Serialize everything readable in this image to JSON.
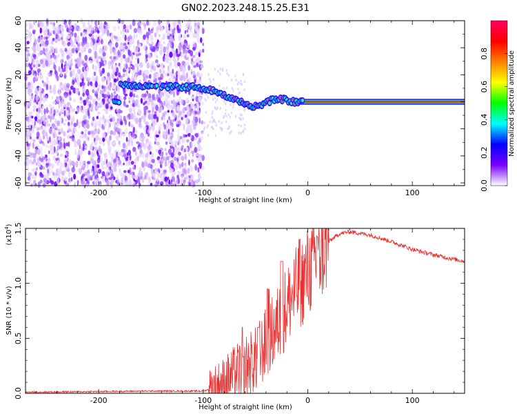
{
  "figure": {
    "title": "GN02.2023.248.15.25.E31"
  },
  "chart_data": [
    {
      "type": "heatmap",
      "xlabel": "Height of straight line (km)",
      "ylabel": "Frequency (Hz)",
      "xlim": [
        -270,
        150
      ],
      "ylim": [
        -62,
        60
      ],
      "x_ticks": [
        -200,
        -100,
        0,
        100
      ],
      "y_ticks": [
        60,
        40,
        20,
        0,
        -20,
        -40,
        -60
      ],
      "colorbar": {
        "label": "Normalized spectral amplitude",
        "range": [
          0,
          1
        ],
        "ticks": [
          "0.0",
          "0.2",
          "0.4",
          "0.6",
          "0.8"
        ],
        "colors": [
          "#ffffff",
          "#7a00ff",
          "#0000ff",
          "#00ffff",
          "#00ff00",
          "#ffff00",
          "#ff8000",
          "#ff0000",
          "#ff0060"
        ]
      },
      "signal_track": [
        {
          "x": -180,
          "f": 13
        },
        {
          "x": -160,
          "f": 12
        },
        {
          "x": -140,
          "f": 11
        },
        {
          "x": -120,
          "f": 11
        },
        {
          "x": -105,
          "f": 11
        },
        {
          "x": -95,
          "f": 9
        },
        {
          "x": -85,
          "f": 7
        },
        {
          "x": -75,
          "f": 3
        },
        {
          "x": -65,
          "f": 0
        },
        {
          "x": -55,
          "f": -3
        },
        {
          "x": -45,
          "f": -3
        },
        {
          "x": -35,
          "f": 1
        },
        {
          "x": -25,
          "f": 2
        },
        {
          "x": -15,
          "f": 0
        },
        {
          "x": 0,
          "f": 0
        },
        {
          "x": 50,
          "f": 0
        },
        {
          "x": 150,
          "f": 0
        }
      ]
    },
    {
      "type": "line",
      "xlabel": "Height of straight line (km)",
      "ylabel": "SNR (10 * v/v)",
      "scale_label": "(x10",
      "scale_exponent": "4",
      "xlim": [
        -270,
        150
      ],
      "ylim": [
        0,
        1.5
      ],
      "x_ticks": [
        -200,
        -100,
        0,
        100
      ],
      "y_ticks": [
        "0.0",
        "0.5",
        "1.0",
        "1.5"
      ],
      "color": "#e83030",
      "envelope": [
        {
          "x": -270,
          "y": 0.01
        },
        {
          "x": -150,
          "y": 0.02
        },
        {
          "x": -100,
          "y": 0.02
        },
        {
          "x": -90,
          "y": 0.05
        },
        {
          "x": -80,
          "y": 0.1
        },
        {
          "x": -70,
          "y": 0.18
        },
        {
          "x": -60,
          "y": 0.25
        },
        {
          "x": -50,
          "y": 0.3
        },
        {
          "x": -40,
          "y": 0.45
        },
        {
          "x": -30,
          "y": 0.6
        },
        {
          "x": -20,
          "y": 0.8
        },
        {
          "x": -10,
          "y": 0.95
        },
        {
          "x": 0,
          "y": 1.1
        },
        {
          "x": 10,
          "y": 1.25
        },
        {
          "x": 20,
          "y": 1.38
        },
        {
          "x": 30,
          "y": 1.45
        },
        {
          "x": 40,
          "y": 1.47
        },
        {
          "x": 60,
          "y": 1.44
        },
        {
          "x": 80,
          "y": 1.38
        },
        {
          "x": 100,
          "y": 1.31
        },
        {
          "x": 120,
          "y": 1.26
        },
        {
          "x": 150,
          "y": 1.2
        }
      ],
      "spikes": [
        {
          "x": -62,
          "y": 0.6
        },
        {
          "x": -47,
          "y": 0.6
        },
        {
          "x": -38,
          "y": 0.95
        },
        {
          "x": -25,
          "y": 1.2
        },
        {
          "x": -8,
          "y": 1.4
        },
        {
          "x": 10,
          "y": 1.42
        }
      ]
    }
  ]
}
